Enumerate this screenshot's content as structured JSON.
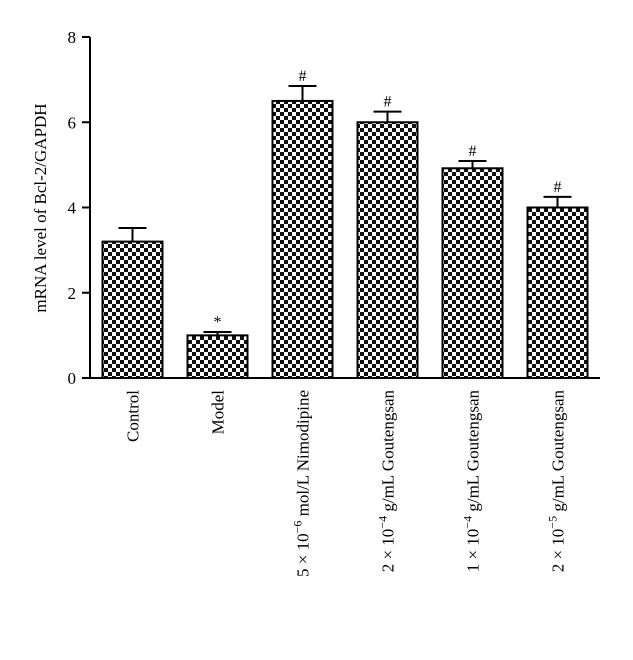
{
  "chart_data": {
    "type": "bar",
    "title": "",
    "xlabel": "",
    "ylabel": "mRNA level of Bcl-2/GAPDH",
    "ylim": [
      0,
      8
    ],
    "yticks": [
      0,
      2,
      4,
      6,
      8
    ],
    "grid": false,
    "categories": [
      "Control",
      "Model",
      "5 × 10−6 mol/L Nimodipine",
      "2 × 10−4 g/mL Goutengsan",
      "1 × 10−4 g/mL Goutengsan",
      "2 × 10−5 g/mL Goutengsan"
    ],
    "values": [
      3.2,
      1.0,
      6.5,
      6.0,
      4.92,
      4.0
    ],
    "errors": [
      0.32,
      0.08,
      0.35,
      0.25,
      0.17,
      0.25
    ],
    "annotations": [
      "",
      "*",
      "#",
      "#",
      "#",
      "#"
    ],
    "bar_pattern": "checkerboard",
    "colors": {
      "bar_dark": "#111111",
      "bar_light": "#ffffff",
      "axis": "#000000"
    }
  }
}
